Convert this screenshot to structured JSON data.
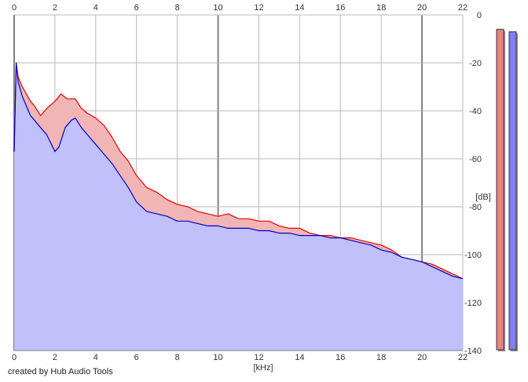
{
  "chart_data": {
    "type": "area",
    "x_unit_label": "[kHz]",
    "y_unit_label": "[dB]",
    "xlim": [
      0,
      22
    ],
    "ylim": [
      -140,
      0
    ],
    "x_ticks": [
      0,
      2,
      4,
      6,
      8,
      10,
      12,
      14,
      16,
      18,
      20,
      22
    ],
    "y_ticks": [
      0,
      -20,
      -40,
      -60,
      -80,
      -100,
      -120,
      -140
    ],
    "y_tick_labels": [
      "0",
      "-20",
      "-40",
      "-60",
      "-80",
      "-100",
      "-120",
      "-140"
    ],
    "grid": true,
    "series": [
      {
        "color": "#e60000",
        "fill": "#f2b5b5",
        "x": [
          0,
          0.1,
          0.2,
          0.4,
          0.6,
          0.8,
          1.0,
          1.3,
          1.6,
          2.0,
          2.3,
          2.6,
          3.0,
          3.3,
          3.6,
          4.0,
          4.4,
          4.8,
          5.2,
          5.6,
          6.0,
          6.5,
          7.0,
          7.5,
          8.0,
          8.5,
          9.0,
          9.5,
          10.0,
          10.5,
          11.0,
          11.5,
          12.0,
          12.5,
          13.0,
          13.5,
          14.0,
          14.5,
          15.0,
          15.5,
          16.0,
          16.5,
          17.0,
          17.5,
          18.0,
          18.5,
          19.0,
          19.5,
          20.0,
          20.5,
          21.0,
          21.5,
          22.0
        ],
        "values": [
          -57,
          -20,
          -26,
          -30,
          -33,
          -36,
          -38,
          -42,
          -39,
          -36,
          -33,
          -35,
          -35,
          -39,
          -41,
          -43,
          -46,
          -51,
          -57,
          -61,
          -67,
          -72,
          -74,
          -77,
          -79,
          -80,
          -82,
          -83,
          -84,
          -83,
          -85,
          -85,
          -86,
          -86,
          -88,
          -89,
          -89,
          -91,
          -92,
          -92,
          -93,
          -93,
          -94,
          -95,
          -96,
          -98,
          -101,
          -102,
          -103,
          -104,
          -106,
          -108,
          -110
        ]
      },
      {
        "color": "#0000cc",
        "fill": "#c0c0fa",
        "x": [
          0,
          0.1,
          0.2,
          0.4,
          0.6,
          0.8,
          1.0,
          1.3,
          1.6,
          2.0,
          2.2,
          2.5,
          2.8,
          3.0,
          3.3,
          3.6,
          4.0,
          4.4,
          4.8,
          5.2,
          5.6,
          6.0,
          6.5,
          7.0,
          7.5,
          8.0,
          8.5,
          9.0,
          9.5,
          10.0,
          10.5,
          11.0,
          11.5,
          12.0,
          12.5,
          13.0,
          13.5,
          14.0,
          14.5,
          15.0,
          15.5,
          16.0,
          16.5,
          17.0,
          17.5,
          18.0,
          18.5,
          19.0,
          19.5,
          20.0,
          20.5,
          21.0,
          21.5,
          22.0
        ],
        "values": [
          -57,
          -20,
          -28,
          -34,
          -38,
          -42,
          -44,
          -47,
          -50,
          -57,
          -55,
          -47,
          -44,
          -43,
          -47,
          -50,
          -54,
          -58,
          -62,
          -67,
          -72,
          -78,
          -82,
          -83,
          -84,
          -86,
          -86,
          -87,
          -88,
          -88,
          -89,
          -89,
          -89,
          -90,
          -90,
          -91,
          -91,
          -92,
          -92,
          -92,
          -93,
          -93,
          -94,
          -95,
          -96,
          -98,
          -99,
          -101,
          -102,
          -103,
          -105,
          -107,
          -109,
          -110
        ]
      }
    ],
    "level_bars": [
      {
        "color": "#f08080",
        "value": -6
      },
      {
        "color": "#8080f0",
        "value": -7
      }
    ]
  },
  "footer": {
    "credit": "created by Hub Audio Tools"
  }
}
